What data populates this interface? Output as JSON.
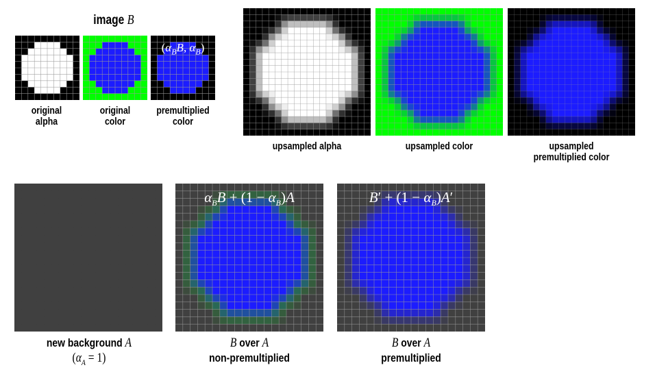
{
  "image_b_title": {
    "text": "image",
    "symbol": "B"
  },
  "panels_small": [
    {
      "id": "orig-alpha",
      "caption_lines": [
        "original",
        "alpha"
      ]
    },
    {
      "id": "orig-color",
      "caption_lines": [
        "original",
        "color"
      ]
    },
    {
      "id": "premult-color",
      "caption_lines": [
        "premultiplied",
        "color"
      ],
      "overlay": "(α_B B, α_B)"
    }
  ],
  "panels_upsampled": [
    {
      "id": "up-alpha",
      "caption_lines": [
        "upsampled alpha"
      ]
    },
    {
      "id": "up-color",
      "caption_lines": [
        "upsampled color"
      ]
    },
    {
      "id": "up-premult",
      "caption_lines": [
        "upsampled",
        "premultiplied color"
      ]
    }
  ],
  "panels_composite": [
    {
      "id": "background",
      "caption_bold": "new background",
      "caption_symbol": "A",
      "caption_math": "(α_A = 1)"
    },
    {
      "id": "over-nonpremult",
      "caption_symbol_first": "B",
      "caption_mid": "over",
      "caption_symbol_last": "A",
      "caption_line2": "non-premultiplied",
      "overlay": "α_B B + (1 − α_B)A"
    },
    {
      "id": "over-premult",
      "caption_symbol_first": "B",
      "caption_mid": "over",
      "caption_symbol_last": "A",
      "caption_line2": "premultiplied",
      "overlay": "B′ + (1 − α_B)A′"
    }
  ],
  "colors": {
    "black": "#000000",
    "white": "#ffffff",
    "green": "#00ff00",
    "blue": "#1c1cff",
    "background_gray": "#404040",
    "grid": "#9a9a9a"
  }
}
